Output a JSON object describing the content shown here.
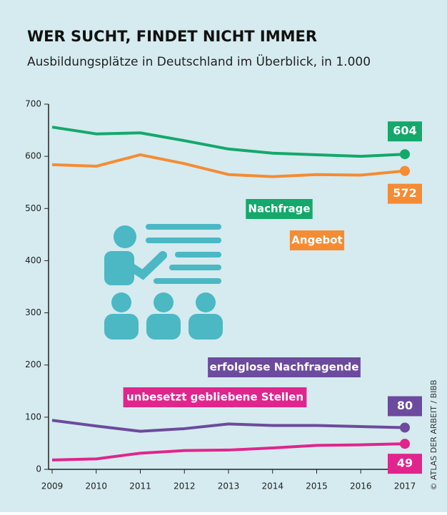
{
  "chart_data": {
    "type": "line",
    "title": "WER SUCHT, FINDET NICHT IMMER",
    "subtitle": "Ausbildungsplätze in Deutschland im Überblick, in 1.000",
    "source": "© ATLAS DER ARBEIT / BIBB",
    "x": [
      2009,
      2010,
      2011,
      2012,
      2013,
      2014,
      2015,
      2016,
      2017
    ],
    "xlim": [
      2009,
      2017
    ],
    "xticks": [
      2009,
      2010,
      2011,
      2012,
      2013,
      2014,
      2015,
      2016,
      2017
    ],
    "ylim": [
      0,
      700
    ],
    "yticks": [
      0,
      100,
      200,
      300,
      400,
      500,
      600,
      700
    ],
    "series": [
      {
        "name": "Nachfrage",
        "color": "#14a86b",
        "values": [
          656,
          643,
          645,
          630,
          614,
          606,
          603,
          600,
          604
        ]
      },
      {
        "name": "Angebot",
        "color": "#f58b33",
        "values": [
          584,
          581,
          603,
          586,
          565,
          561,
          565,
          564,
          572
        ]
      },
      {
        "name": "erfolglose Nachfragende",
        "color": "#6c4a9e",
        "values": [
          94,
          83,
          73,
          78,
          87,
          84,
          84,
          82,
          80
        ]
      },
      {
        "name": "unbesetzt gebliebene Stellen",
        "color": "#e0258c",
        "values": [
          18,
          20,
          31,
          36,
          37,
          41,
          46,
          47,
          49
        ]
      }
    ]
  }
}
